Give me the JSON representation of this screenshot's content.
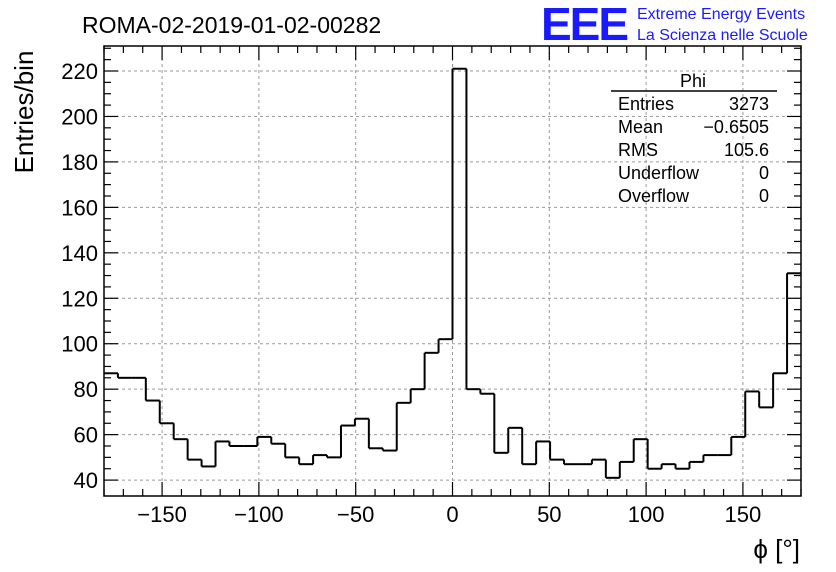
{
  "header": {
    "title": "ROMA-02-2019-01-02-00282",
    "logo_mark": "EEE",
    "logo_line1": "Extreme Energy Events",
    "logo_line2": "La Scienza nelle Scuole"
  },
  "colors": {
    "histogram_line": "#000000",
    "grid": "#9a9a9a",
    "logo": "#1a1aff"
  },
  "stats_box": {
    "title": "Phi",
    "rows": [
      {
        "label": "Entries",
        "value": "3273"
      },
      {
        "label": "Mean",
        "value": "−0.6505"
      },
      {
        "label": "RMS",
        "value": "105.6"
      },
      {
        "label": "Underflow",
        "value": "0"
      },
      {
        "label": "Overflow",
        "value": "0"
      }
    ]
  },
  "chart_data": {
    "type": "histogram",
    "title": "ROMA-02-2019-01-02-00282",
    "xlabel": "ϕ [°]",
    "ylabel": "Entries/bin",
    "xlim": [
      -180,
      180
    ],
    "ylim": [
      33,
      231
    ],
    "grid": true,
    "legend": "top-right stats box",
    "bin_width": 7.2,
    "bin_edges_start": -180,
    "values": [
      87,
      85,
      85,
      75,
      65,
      58,
      49,
      46,
      57,
      55,
      55,
      59,
      56,
      50,
      47,
      51,
      50,
      64,
      67,
      54,
      53,
      74,
      80,
      96,
      102,
      221,
      80,
      78,
      52,
      63,
      47,
      57,
      49,
      47,
      47,
      49,
      41,
      48,
      58,
      45,
      47,
      45,
      48,
      51,
      51,
      59,
      79,
      72,
      87,
      131
    ],
    "x_ticks": [
      -150,
      -100,
      -50,
      0,
      50,
      100,
      150
    ],
    "x_tick_labels": [
      "−150",
      "−100",
      "−50",
      "0",
      "50",
      "100",
      "150"
    ],
    "y_ticks": [
      40,
      60,
      80,
      100,
      120,
      140,
      160,
      180,
      200,
      220
    ],
    "y_tick_labels": [
      "40",
      "60",
      "80",
      "100",
      "120",
      "140",
      "160",
      "180",
      "200",
      "220"
    ]
  }
}
